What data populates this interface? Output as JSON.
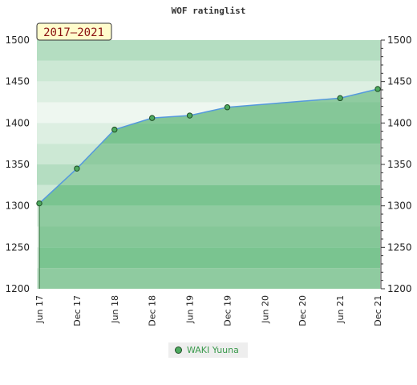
{
  "chart_data": {
    "type": "area",
    "title": "WOF ratinglist",
    "period_label": "2017–2021",
    "x_ticks": [
      "Jun 17",
      "Dec 17",
      "Jun 18",
      "Dec 18",
      "Jun 19",
      "Dec 19",
      "Jun 20",
      "Dec 20",
      "Jun 21",
      "Dec 21"
    ],
    "y_ticks": [
      1200,
      1250,
      1300,
      1350,
      1400,
      1450,
      1500
    ],
    "ylim": [
      1200,
      1500
    ],
    "series": [
      {
        "name": "WAKI Yuuna",
        "x": [
          "Jun 17",
          "Dec 17",
          "Jun 18",
          "Dec 18",
          "Jun 19",
          "Dec 19",
          "Jun 21",
          "Dec 21"
        ],
        "values": [
          1303,
          1345,
          1392,
          1406,
          1409,
          1419,
          1430,
          1441
        ]
      }
    ],
    "colors": {
      "line": "#5599dd",
      "marker_fill": "#4daa5f",
      "marker_stroke": "#1f4d25",
      "fill_above": "#b4ddc1",
      "fill_below": "#7ac490"
    },
    "legend_position": "bottom-center",
    "grid": true
  }
}
